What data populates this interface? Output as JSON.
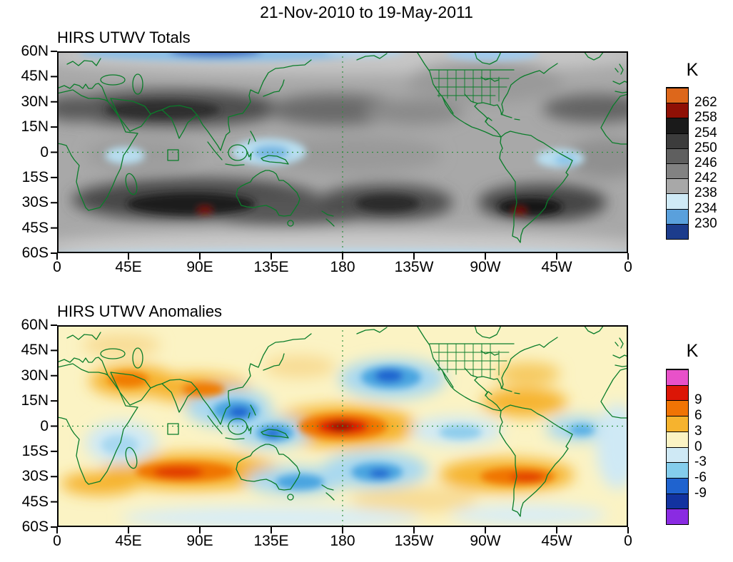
{
  "main_title": "21-Nov-2010 to 19-May-2011",
  "panels": [
    {
      "title": "HIRS UTWV Totals",
      "units_label": "K",
      "lat_ticks": [
        "60N",
        "45N",
        "30N",
        "15N",
        "0",
        "15S",
        "30S",
        "45S",
        "60S"
      ],
      "lon_ticks": [
        "0",
        "45E",
        "90E",
        "135E",
        "180",
        "135W",
        "90W",
        "45W",
        "0"
      ],
      "colorbar_bands": [
        {
          "color": "#dd671b",
          "label": "262"
        },
        {
          "color": "#8f1005",
          "label": "258"
        },
        {
          "color": "#1a1a1a",
          "label": "254"
        },
        {
          "color": "#3c3c3c",
          "label": "250"
        },
        {
          "color": "#5f5f5f",
          "label": "246"
        },
        {
          "color": "#828282",
          "label": "242"
        },
        {
          "color": "#a8a8a8",
          "label": "238"
        },
        {
          "color": "#cfeaf6",
          "label": "234"
        },
        {
          "color": "#5aa0dc",
          "label": "230"
        },
        {
          "color": "#1c3c8c",
          "label": null
        }
      ]
    },
    {
      "title": "HIRS UTWV Anomalies",
      "units_label": "K",
      "lat_ticks": [
        "60N",
        "45N",
        "30N",
        "15N",
        "0",
        "15S",
        "30S",
        "45S",
        "60S"
      ],
      "lon_ticks": [
        "0",
        "45E",
        "90E",
        "135E",
        "180",
        "135W",
        "90W",
        "45W",
        "0"
      ],
      "colorbar_bands": [
        {
          "color": "#e851c9",
          "label": null
        },
        {
          "color": "#dc1606",
          "label": "9"
        },
        {
          "color": "#f07404",
          "label": "6"
        },
        {
          "color": "#f6b32e",
          "label": "3"
        },
        {
          "color": "#fbf3c4",
          "label": "0"
        },
        {
          "color": "#cfe9f5",
          "label": "-3"
        },
        {
          "color": "#84cdec",
          "label": "-6"
        },
        {
          "color": "#1f63cf",
          "label": "-9"
        },
        {
          "color": "#1233a0",
          "label": null
        },
        {
          "color": "#8a2be2",
          "label": null
        }
      ]
    }
  ],
  "chart_data": [
    {
      "type": "heatmap",
      "title": "HIRS UTWV Totals",
      "date_range": "21-Nov-2010 to 19-May-2011",
      "units": "K",
      "projection": "global cylindrical equidistant, longitude 0E eastward to 0W, latitude 60S-60N",
      "lon_axis_ticks": [
        "0",
        "45E",
        "90E",
        "135E",
        "180",
        "135W",
        "90W",
        "45W",
        "0"
      ],
      "lat_axis_ticks": [
        "60N",
        "45N",
        "30N",
        "15N",
        "0",
        "15S",
        "30S",
        "45S",
        "60S"
      ],
      "contour_levels_K": [
        230,
        234,
        238,
        242,
        246,
        250,
        254,
        258,
        262
      ],
      "palette_low_to_high": [
        "#1c3c8c",
        "#5aa0dc",
        "#cfeaf6",
        "#a8a8a8",
        "#828282",
        "#5f5f5f",
        "#3c3c3c",
        "#1a1a1a",
        "#8f1005",
        "#dd671b"
      ],
      "grid_reference_lines": [
        "equator (dashed green)",
        "180 meridian (dashed green)"
      ],
      "notable_features": [
        {
          "feature": "Cold/moist brightness temperatures below 238 K (pale blue) over equatorial Indonesia, equatorial Africa, northern South America and along the 60N edge",
          "approx_value_K": "234-238"
        },
        {
          "feature": "Darkest blue band (<230 K) along the northern map edge near 90E",
          "approx_value_K": "<230"
        },
        {
          "feature": "Dry subtropical maxima 250-258 K (dark gray) bands near 20-30N over N Africa-Arabia and near 20-30S over the S Indian Ocean, S Pacific and S Atlantic",
          "approx_value_K": "250-258"
        },
        {
          "feature": "Small hottest cores above 258 K (dark red) near 90E 25S and near 65W 25S",
          "approx_value_K": ">258"
        },
        {
          "feature": "Lighter grays (238-246 K) at mid/high latitudes and along the equatorial central Pacific",
          "approx_value_K": "238-246"
        }
      ]
    },
    {
      "type": "heatmap",
      "title": "HIRS UTWV Anomalies",
      "date_range": "21-Nov-2010 to 19-May-2011",
      "units": "K",
      "projection": "global cylindrical equidistant, longitude 0E eastward to 0W, latitude 60S-60N",
      "lon_axis_ticks": [
        "0",
        "45E",
        "90E",
        "135E",
        "180",
        "135W",
        "90W",
        "45W",
        "0"
      ],
      "lat_axis_ticks": [
        "60N",
        "45N",
        "30N",
        "15N",
        "0",
        "15S",
        "30S",
        "45S",
        "60S"
      ],
      "contour_levels_K": [
        -9,
        -6,
        -3,
        0,
        3,
        6,
        9
      ],
      "palette_low_to_high": [
        "#8a2be2",
        "#1233a0",
        "#1f63cf",
        "#84cdec",
        "#cfe9f5",
        "#fbf3c4",
        "#f6b32e",
        "#f07404",
        "#dc1606",
        "#e851c9"
      ],
      "grid_reference_lines": [
        "equator (dashed green)",
        "180 meridian (dashed green)"
      ],
      "notable_features": [
        {
          "feature": "Strongest positive anomaly, exceeding +9 K, centered on the equator near the dateline (central Pacific)",
          "approx_value_K": ">9"
        },
        {
          "feature": "Positive anomalies +3 to +6 K across the southern Indian Ocean near 25S, subtropical South America/S Atlantic near 25S, NW Africa and Arabia near 20N, and the Caribbean",
          "approx_value_K": "3-6"
        },
        {
          "feature": "Negative anomalies -3 to -9 K over the Bay of Bengal/SE Asia, Indonesia, the North Pacific near 30N 170W, and the South Pacific near 25S",
          "approx_value_K": "-3 to -9"
        },
        {
          "feature": "Background weakly positive (0 to +3 K, pale yellow) with pale blue (0 to -3 K) patches over southern Africa, the eastern equatorial Pacific and the far South Atlantic",
          "approx_value_K": "-3 to 3"
        }
      ]
    }
  ]
}
